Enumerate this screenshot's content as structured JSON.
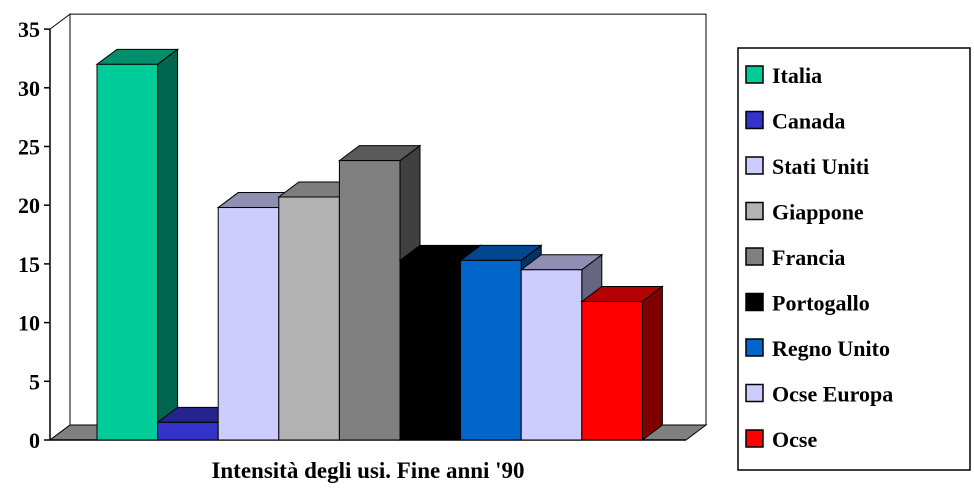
{
  "chart_data": {
    "type": "bar",
    "title": "",
    "xlabel": "Intensità degli usi. Fine anni '90",
    "ylabel": "",
    "ylim": [
      0,
      35
    ],
    "yticks": [
      0,
      5,
      10,
      15,
      20,
      25,
      30,
      35
    ],
    "grid": false,
    "legend_position": "right",
    "bar_style": "3d",
    "series": [
      {
        "name": "Italia",
        "value": 32,
        "color": "#00CC99"
      },
      {
        "name": "Canada",
        "value": 1.5,
        "color": "#3333CC"
      },
      {
        "name": "Stati Uniti",
        "value": 19.8,
        "color": "#CCCCFF"
      },
      {
        "name": "Giappone",
        "value": 20.7,
        "color": "#B2B2B2"
      },
      {
        "name": "Francia",
        "value": 23.8,
        "color": "#808080"
      },
      {
        "name": "Portogallo",
        "value": 15.3,
        "color": "#000000"
      },
      {
        "name": "Regno Unito",
        "value": 15.3,
        "color": "#0066CC"
      },
      {
        "name": "Ocse Europa",
        "value": 14.5,
        "color": "#CCCCFF"
      },
      {
        "name": "Ocse",
        "value": 11.8,
        "color": "#FF0000"
      }
    ]
  }
}
